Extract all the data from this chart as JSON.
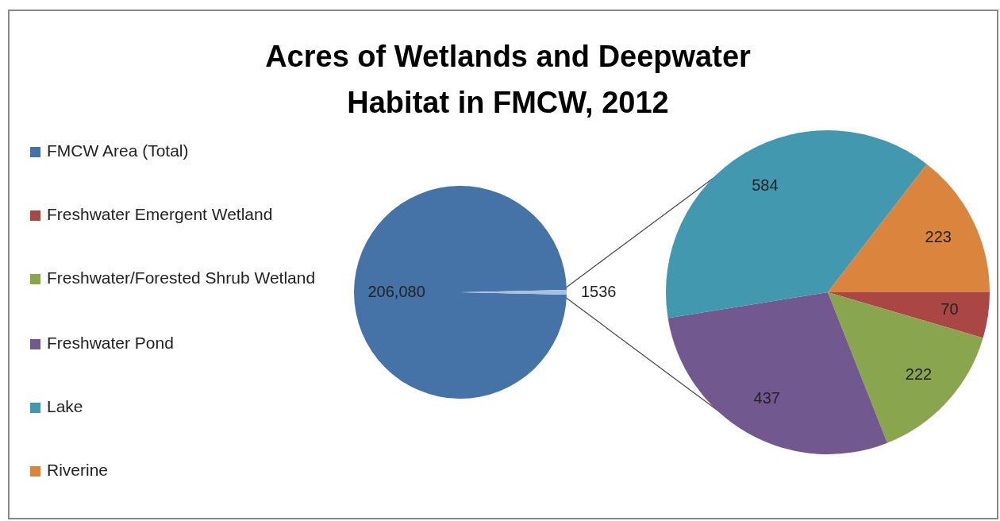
{
  "chart_data": [
    {
      "type": "pie",
      "title": "Acres of Wetlands and Deepwater Habitat in FMCW, 2012",
      "categories": [
        "FMCW Area (Total)",
        null
      ],
      "values": [
        206080,
        1536
      ],
      "colors": [
        "#4572a7",
        "#a9bfe0"
      ],
      "value_labels": [
        "206,080",
        "1536"
      ],
      "legend": "left"
    },
    {
      "type": "pie",
      "categories": [
        "Freshwater Emergent  Wetland",
        "Freshwater/Forested Shrub Wetland",
        "Freshwater Pond",
        "Lake",
        "Riverine"
      ],
      "values": [
        70,
        222,
        437,
        584,
        223
      ],
      "colors": [
        "#aa4643",
        "#89a54e",
        "#71588f",
        "#4198af",
        "#db843d"
      ],
      "data_labels": true,
      "legend": "left"
    }
  ]
}
